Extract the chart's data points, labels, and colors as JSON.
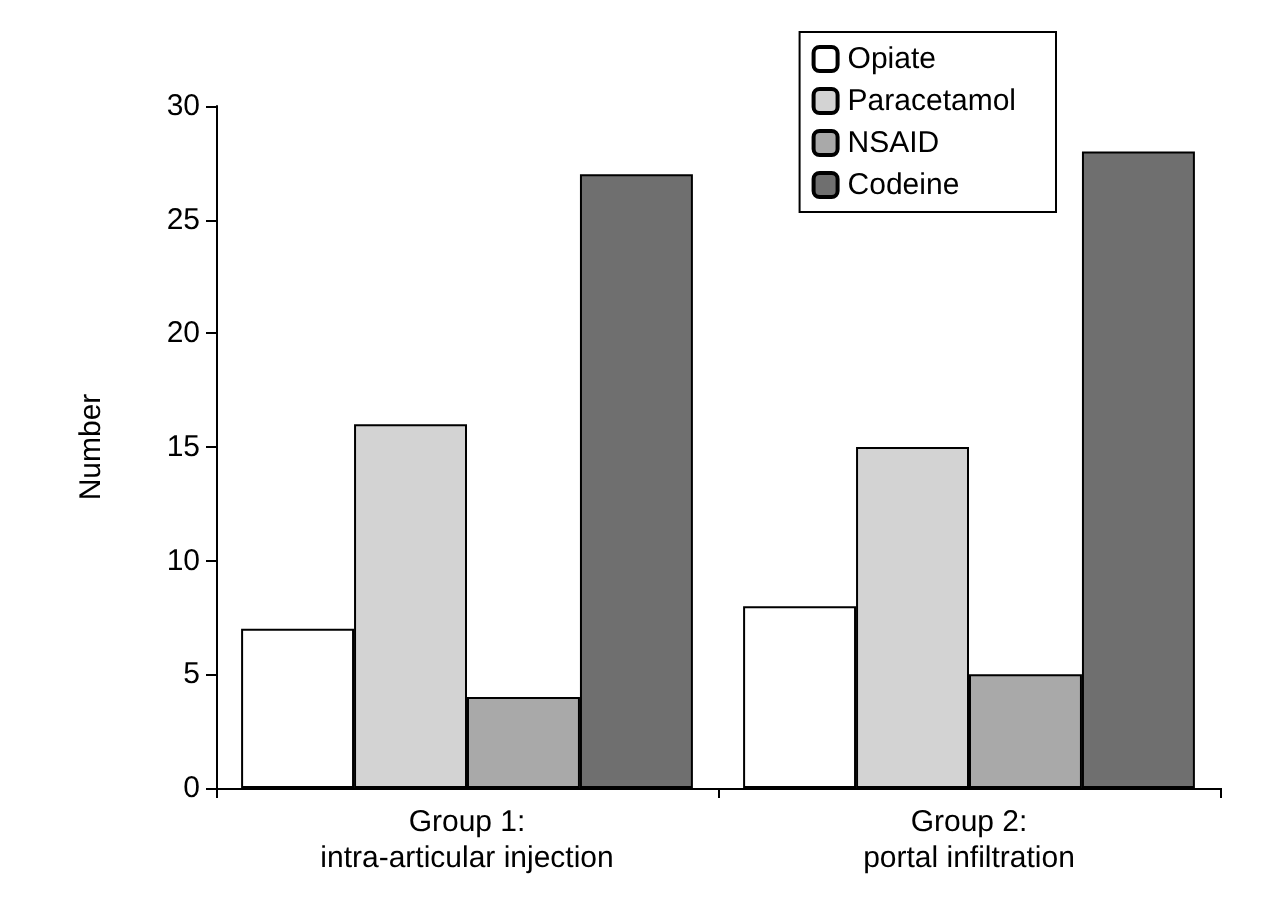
{
  "chart_data": {
    "type": "bar",
    "ylabel": "Number",
    "categories": [
      "Group 1:\nintra-articular injection",
      "Group 2:\nportal infiltration"
    ],
    "series": [
      {
        "name": "Opiate",
        "color": "#ffffff",
        "values": [
          7,
          8
        ]
      },
      {
        "name": "Paracetamol",
        "color": "#d3d3d3",
        "values": [
          16,
          15
        ]
      },
      {
        "name": "NSAID",
        "color": "#a9a9a9",
        "values": [
          4,
          5
        ]
      },
      {
        "name": "Codeine",
        "color": "#6f6f6f",
        "values": [
          27,
          28
        ]
      }
    ],
    "ylim": [
      0,
      30
    ],
    "yticks": [
      0,
      5,
      10,
      15,
      20,
      25,
      30
    ],
    "grid": false,
    "legend": "top right"
  }
}
